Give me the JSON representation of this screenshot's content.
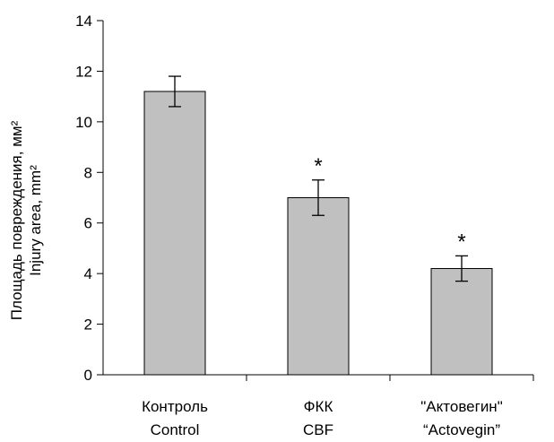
{
  "chart_data": {
    "type": "bar",
    "categories": [
      "Контроль",
      "ФКК",
      "\"Актовегин\""
    ],
    "categories_en": [
      "Control",
      "CBF",
      "“Actovegin”"
    ],
    "values": [
      11.2,
      7.0,
      4.2
    ],
    "error_low": [
      10.6,
      6.3,
      3.7
    ],
    "error_high": [
      11.8,
      7.7,
      4.7
    ],
    "significance": [
      "",
      "*",
      "*"
    ],
    "ylabel": "Площадь повреждения, мм²",
    "ylabel_en": "Injury area, mm²",
    "ylim": [
      0,
      14
    ],
    "yticks": [
      0,
      2,
      4,
      6,
      8,
      10,
      12,
      14
    ],
    "grid": false,
    "colors": {
      "bar_fill": "#c0c0c0",
      "bar_stroke": "#000000",
      "axis": "#000000"
    }
  }
}
